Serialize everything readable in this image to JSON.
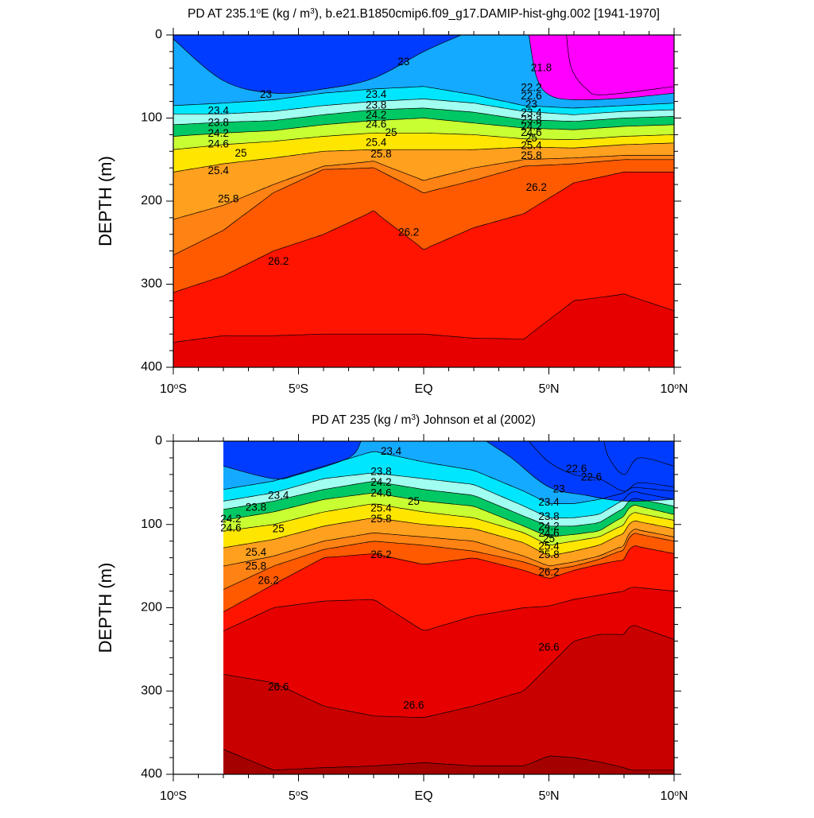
{
  "colors": {
    "density_levels": [
      21.6,
      21.8,
      22.0,
      22.2,
      22.4,
      22.6,
      22.8,
      23.0,
      23.2,
      23.4,
      23.6,
      23.8,
      24.0,
      24.2,
      24.4,
      24.6,
      24.8,
      25.0,
      25.2,
      25.4,
      25.6,
      25.8,
      26.0,
      26.2,
      26.4,
      26.6,
      26.8
    ],
    "palette": [
      "#ffffff",
      "#646464",
      "#a5a5a5",
      "#ff00ff",
      "#c800e6",
      "#7300e6",
      "#1e14d2",
      "#003cff",
      "#0078ff",
      "#14aaff",
      "#00c8ff",
      "#00e6ff",
      "#50ffff",
      "#a0fff0",
      "#00e6c8",
      "#00c864",
      "#50e650",
      "#c8ff32",
      "#ffff32",
      "#ffe600",
      "#ffbe14",
      "#ffa01e",
      "#ff8214",
      "#ff5a00",
      "#ff1400",
      "#e60000",
      "#c80000",
      "#a50000"
    ]
  },
  "chart_data": [
    {
      "type": "contour",
      "title_prefix": "PD AT 235.1",
      "title_degree": "o",
      "title_suffix_a": "E (kg / m",
      "title_sup": "3",
      "title_suffix_b": "), b.e21.B1850cmip6.f09_g17.DAMIP-hist-ghg.002 [1941-1970]",
      "ylabel": "DEPTH (m)",
      "xlim": [
        -10,
        10
      ],
      "ylim": [
        0,
        400
      ],
      "y_ticks": [
        0,
        100,
        200,
        300,
        400
      ],
      "x_ticks": [
        {
          "value": -10,
          "num": "10",
          "deg": "o",
          "hemi": "S"
        },
        {
          "value": -5,
          "num": "5",
          "deg": "o",
          "hemi": "S"
        },
        {
          "value": 0,
          "num": "EQ",
          "deg": "",
          "hemi": ""
        },
        {
          "value": 5,
          "num": "5",
          "deg": "o",
          "hemi": "N"
        },
        {
          "value": 10,
          "num": "10",
          "deg": "o",
          "hemi": "N"
        }
      ],
      "surface_isopycnals": [
        {
          "value": 21.8,
          "points": [
            [
              5.7,
              0
            ],
            [
              5.9,
              40
            ],
            [
              6.5,
              65
            ],
            [
              7.2,
              72
            ],
            [
              10,
              62
            ]
          ]
        },
        {
          "value": 22.2,
          "points": [
            [
              4.2,
              0
            ],
            [
              4.5,
              50
            ],
            [
              5.0,
              72
            ],
            [
              6.0,
              78
            ],
            [
              8.0,
              76
            ],
            [
              10,
              70
            ]
          ]
        },
        {
          "value": 23.0,
          "points": [
            [
              -10,
              5
            ],
            [
              -8,
              55
            ],
            [
              -6,
              70
            ],
            [
              -4,
              65
            ],
            [
              -2,
              52
            ],
            [
              0,
              20
            ],
            [
              1.5,
              0
            ]
          ]
        }
      ],
      "isopycnal_depths": {
        "x": [
          -10,
          -8,
          -6,
          -4,
          -2,
          0,
          2,
          4,
          6,
          8,
          10
        ],
        "levels": [
          {
            "value": 23.4,
            "depths": [
              85,
              82,
              78,
              70,
              65,
              62,
              72,
              85,
              88,
              85,
              82
            ]
          },
          {
            "value": 23.8,
            "depths": [
              95,
              95,
              92,
              85,
              80,
              77,
              82,
              92,
              96,
              92,
              90
            ]
          },
          {
            "value": 24.2,
            "depths": [
              108,
              105,
              103,
              96,
              90,
              88,
              93,
              102,
              104,
              100,
              98
            ]
          },
          {
            "value": 24.6,
            "depths": [
              122,
              118,
              115,
              108,
              103,
              100,
              106,
              112,
              114,
              110,
              108
            ]
          },
          {
            "value": 25.0,
            "depths": [
              138,
              132,
              128,
              122,
              118,
              118,
              120,
              125,
              126,
              122,
              120
            ]
          },
          {
            "value": 25.4,
            "depths": [
              165,
              155,
              148,
              140,
              138,
              138,
              138,
              135,
              136,
              132,
              130
            ]
          },
          {
            "value": 25.8,
            "depths": [
              222,
              205,
              180,
              158,
              152,
              175,
              160,
              150,
              148,
              145,
              145
            ]
          },
          {
            "value": 26.0,
            "depths": [
              265,
              235,
              190,
              162,
              160,
              190,
              175,
              158,
              155,
              150,
              150
            ]
          },
          {
            "value": 26.2,
            "depths": [
              310,
              290,
              260,
              240,
              212,
              258,
              232,
              215,
              178,
              165,
              165
            ]
          },
          {
            "value": 26.4,
            "depths": [
              370,
              362,
              362,
              360,
              360,
              360,
              365,
              366,
              320,
              312,
              332
            ]
          }
        ]
      },
      "contour_labels": [
        {
          "text": "23",
          "x": -0.8,
          "y": 33
        },
        {
          "text": "23",
          "x": -6.3,
          "y": 72
        },
        {
          "text": "23.4",
          "x": -8.2,
          "y": 92
        },
        {
          "text": "23.8",
          "x": -8.2,
          "y": 106
        },
        {
          "text": "24.2",
          "x": -8.2,
          "y": 119
        },
        {
          "text": "24.6",
          "x": -8.2,
          "y": 132
        },
        {
          "text": "25",
          "x": -7.3,
          "y": 143
        },
        {
          "text": "25.4",
          "x": -8.2,
          "y": 164
        },
        {
          "text": "25.8",
          "x": -7.8,
          "y": 198
        },
        {
          "text": "26.2",
          "x": -5.8,
          "y": 273
        },
        {
          "text": "23.4",
          "x": -1.9,
          "y": 72
        },
        {
          "text": "23.8",
          "x": -1.9,
          "y": 85
        },
        {
          "text": "24.2",
          "x": -1.9,
          "y": 97
        },
        {
          "text": "24.6",
          "x": -1.9,
          "y": 108
        },
        {
          "text": "25",
          "x": -1.3,
          "y": 118
        },
        {
          "text": "25.4",
          "x": -1.9,
          "y": 130
        },
        {
          "text": "25.8",
          "x": -1.7,
          "y": 144
        },
        {
          "text": "26.2",
          "x": -0.6,
          "y": 238
        },
        {
          "text": "21.8",
          "x": 4.7,
          "y": 40
        },
        {
          "text": "22.2",
          "x": 4.3,
          "y": 64
        },
        {
          "text": "22.6",
          "x": 4.3,
          "y": 74
        },
        {
          "text": "23",
          "x": 4.3,
          "y": 84
        },
        {
          "text": "23.4",
          "x": 4.3,
          "y": 94
        },
        {
          "text": "23.8",
          "x": 4.3,
          "y": 103
        },
        {
          "text": "24.2",
          "x": 4.3,
          "y": 111
        },
        {
          "text": "24.6",
          "x": 4.3,
          "y": 118
        },
        {
          "text": "25",
          "x": 4.3,
          "y": 125
        },
        {
          "text": "25.4",
          "x": 4.3,
          "y": 134
        },
        {
          "text": "25.8",
          "x": 4.3,
          "y": 146
        },
        {
          "text": "26.2",
          "x": 4.5,
          "y": 184
        }
      ]
    },
    {
      "type": "contour",
      "title_prefix": "PD AT 235 (kg / m",
      "title_degree": "",
      "title_suffix_a": "",
      "title_sup": "3",
      "title_suffix_b": ") Johnson et al (2002)",
      "ylabel": "DEPTH (m)",
      "xlim": [
        -10,
        10
      ],
      "ylim": [
        0,
        400
      ],
      "data_xmin": -8,
      "y_ticks": [
        0,
        100,
        200,
        300,
        400
      ],
      "x_ticks": [
        {
          "value": -10,
          "num": "10",
          "deg": "o",
          "hemi": "S"
        },
        {
          "value": -5,
          "num": "5",
          "deg": "o",
          "hemi": "S"
        },
        {
          "value": 0,
          "num": "EQ",
          "deg": "",
          "hemi": ""
        },
        {
          "value": 5,
          "num": "5",
          "deg": "o",
          "hemi": "N"
        },
        {
          "value": 10,
          "num": "10",
          "deg": "o",
          "hemi": "N"
        }
      ],
      "surface_isopycnals": [
        {
          "value": 22.2,
          "points": [
            [
              7.2,
              0
            ],
            [
              7.4,
              20
            ],
            [
              8.0,
              40
            ],
            [
              8.6,
              20
            ],
            [
              10,
              30
            ]
          ]
        },
        {
          "value": 22.6,
          "points": [
            [
              4.2,
              0
            ],
            [
              5.0,
              25
            ],
            [
              6.0,
              40
            ],
            [
              7.0,
              45
            ],
            [
              8.0,
              60
            ],
            [
              8.6,
              50
            ],
            [
              10,
              55
            ]
          ]
        },
        {
          "value": 23.0,
          "points": [
            [
              -8,
              30
            ],
            [
              -6,
              45
            ],
            [
              -5,
              40
            ],
            [
              -3,
              20
            ],
            [
              -2.5,
              0
            ]
          ]
        },
        {
          "value": 23.0,
          "points": [
            [
              2.5,
              0
            ],
            [
              3.5,
              20
            ],
            [
              5.0,
              55
            ],
            [
              6.5,
              65
            ],
            [
              8,
              72
            ],
            [
              10,
              70
            ]
          ]
        }
      ],
      "isopycnal_depths": {
        "x": [
          -8,
          -6,
          -4,
          -2,
          0,
          2,
          4,
          5,
          6,
          7,
          8,
          8.3,
          10
        ],
        "levels": [
          {
            "value": 23.4,
            "depths": [
              58,
              48,
              30,
              12,
              25,
              35,
              60,
              75,
              75,
              70,
              62,
              55,
              60
            ]
          },
          {
            "value": 23.8,
            "depths": [
              72,
              62,
              45,
              38,
              45,
              52,
              78,
              92,
              92,
              88,
              70,
              60,
              70
            ]
          },
          {
            "value": 24.2,
            "depths": [
              82,
              72,
              58,
              48,
              58,
              65,
              90,
              102,
              102,
              98,
              80,
              68,
              78
            ]
          },
          {
            "value": 24.6,
            "depths": [
              95,
              85,
              70,
              62,
              72,
              78,
              102,
              115,
              112,
              108,
              90,
              76,
              88
            ]
          },
          {
            "value": 25.0,
            "depths": [
              108,
              100,
              85,
              75,
              85,
              92,
              110,
              125,
              120,
              115,
              100,
              85,
              95
            ]
          },
          {
            "value": 25.4,
            "depths": [
              128,
              118,
              102,
              92,
              100,
              105,
              122,
              138,
              132,
              125,
              110,
              95,
              105
            ]
          },
          {
            "value": 25.8,
            "depths": [
              150,
              138,
              120,
              110,
              115,
              120,
              138,
              150,
              145,
              138,
              125,
              105,
              115
            ]
          },
          {
            "value": 26.0,
            "depths": [
              178,
              150,
              130,
              120,
              125,
              132,
              145,
              155,
              150,
              142,
              130,
              110,
              120
            ]
          },
          {
            "value": 26.2,
            "depths": [
              205,
              172,
              140,
              135,
              148,
              140,
              155,
              165,
              155,
              148,
              142,
              125,
              135
            ]
          },
          {
            "value": 26.4,
            "depths": [
              228,
              200,
              192,
              190,
              228,
              210,
              200,
              198,
              190,
              185,
              180,
              175,
              180
            ]
          },
          {
            "value": 26.6,
            "depths": [
              280,
              290,
              318,
              330,
              332,
              318,
              300,
              270,
              240,
              232,
              232,
              220,
              238
            ]
          },
          {
            "value": 26.8,
            "depths": [
              370,
              395,
              392,
              390,
              386,
              390,
              390,
              378,
              380,
              385,
              392,
              395,
              395
            ]
          }
        ]
      },
      "contour_labels": [
        {
          "text": "23.4",
          "x": -1.3,
          "y": 13
        },
        {
          "text": "23.8",
          "x": -1.7,
          "y": 37
        },
        {
          "text": "24.2",
          "x": -1.7,
          "y": 50
        },
        {
          "text": "24.6",
          "x": -1.7,
          "y": 63
        },
        {
          "text": "25",
          "x": -0.4,
          "y": 73
        },
        {
          "text": "25.4",
          "x": -1.7,
          "y": 81
        },
        {
          "text": "25.8",
          "x": -1.7,
          "y": 94
        },
        {
          "text": "26.2",
          "x": -1.7,
          "y": 137
        },
        {
          "text": "23.4",
          "x": -5.8,
          "y": 66
        },
        {
          "text": "23.8",
          "x": -6.7,
          "y": 80
        },
        {
          "text": "24.2",
          "x": -7.7,
          "y": 94
        },
        {
          "text": "24.6",
          "x": -7.7,
          "y": 105
        },
        {
          "text": "25",
          "x": -5.8,
          "y": 106
        },
        {
          "text": "25.4",
          "x": -6.7,
          "y": 134
        },
        {
          "text": "25.8",
          "x": -6.7,
          "y": 151
        },
        {
          "text": "26.2",
          "x": -6.2,
          "y": 168
        },
        {
          "text": "22.6",
          "x": 6.7,
          "y": 44
        },
        {
          "text": "22.6",
          "x": 6.1,
          "y": 34
        },
        {
          "text": "23",
          "x": 5.4,
          "y": 58
        },
        {
          "text": "23.4",
          "x": 5.0,
          "y": 74
        },
        {
          "text": "23.8",
          "x": 5.0,
          "y": 91
        },
        {
          "text": "24.2",
          "x": 5.0,
          "y": 103
        },
        {
          "text": "24.6",
          "x": 5.0,
          "y": 111
        },
        {
          "text": "25",
          "x": 5.0,
          "y": 118
        },
        {
          "text": "25.4",
          "x": 5.0,
          "y": 127
        },
        {
          "text": "25.8",
          "x": 5.0,
          "y": 137
        },
        {
          "text": "26.2",
          "x": 5.0,
          "y": 158
        },
        {
          "text": "26.6",
          "x": 5.0,
          "y": 248
        },
        {
          "text": "26.6",
          "x": -5.8,
          "y": 296
        },
        {
          "text": "26.6",
          "x": -0.4,
          "y": 318
        }
      ]
    }
  ]
}
